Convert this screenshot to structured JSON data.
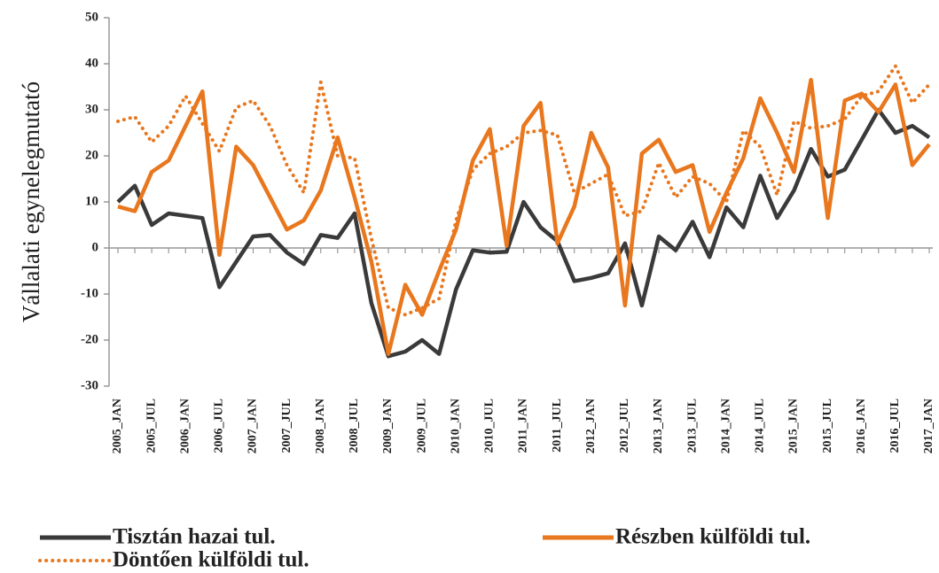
{
  "chart_data": {
    "type": "line",
    "y_label": "Vállalati egynelegmutató",
    "categories": [
      "2005_JAN",
      null,
      "2005_JUL",
      null,
      "2006_JAN",
      null,
      "2006_JUL",
      null,
      "2007_JAN",
      null,
      "2007_JUL",
      null,
      "2008_JAN",
      null,
      "2008_JUL",
      null,
      "2009_JAN",
      null,
      "2009_JUL",
      null,
      "2010_JAN",
      null,
      "2010_JUL",
      null,
      "2011_JAN",
      null,
      "2011_JUL",
      null,
      "2012_JAN",
      null,
      "2012_JUL",
      null,
      "2013_JAN",
      null,
      "2013_JUL",
      null,
      "2014_JAN",
      null,
      "2014_JUL",
      null,
      "2015_JAN",
      null,
      "2015_JUL",
      null,
      "2016_JAN",
      null,
      "2016_JUL",
      null,
      "2017_JAN"
    ],
    "series": [
      {
        "name": "Tisztán hazai tul.",
        "color": "#3a3a3a",
        "style": "solid",
        "values": [
          10,
          13.5,
          5,
          7.5,
          7,
          6.5,
          -8.5,
          -3,
          2.5,
          2.8,
          -1,
          -3.5,
          2.8,
          2.2,
          7.5,
          -12,
          -23.5,
          -22.5,
          -20,
          -23,
          -9,
          -0.5,
          -1,
          -0.8,
          10,
          4.5,
          1.5,
          -7.2,
          -6.5,
          -5.5,
          1,
          -12.5,
          2.5,
          -0.5,
          5.7,
          -2,
          8.8,
          4.5,
          15.7,
          6.5,
          12.5,
          21.5,
          15.5,
          17,
          23.5,
          30,
          25,
          26.5,
          24
        ]
      },
      {
        "name": "Részben külföldi tul.",
        "color": "#e8771e",
        "style": "solid",
        "values": [
          9,
          8,
          16.5,
          19,
          26.5,
          34,
          -1.5,
          22,
          18,
          11,
          4,
          6,
          12.5,
          24,
          11,
          -3,
          -23,
          -8,
          -14.5,
          -5,
          4,
          19,
          25.8,
          0.5,
          26.5,
          31.5,
          1,
          9,
          25,
          17.5,
          -12.5,
          20.5,
          23.5,
          16.5,
          18,
          3.5,
          12,
          19.5,
          32.5,
          25,
          16.5,
          36.5,
          6.5,
          32,
          33.5,
          29.5,
          35.5,
          18,
          22.5
        ]
      },
      {
        "name": "Döntően külföldi tul.",
        "color": "#e8771e",
        "style": "dotted",
        "values": [
          27.5,
          28.5,
          23,
          26.5,
          33,
          27,
          21,
          30.5,
          32,
          26.5,
          18,
          12,
          36,
          20,
          19.5,
          2,
          -13,
          -14.5,
          -13,
          -11,
          6,
          17,
          20.5,
          22,
          25,
          25.5,
          24.5,
          12,
          14,
          16,
          7,
          8,
          18.5,
          11,
          15.5,
          14,
          10,
          25.5,
          22,
          11.5,
          27.5,
          26,
          26.5,
          28,
          33,
          34,
          39.5,
          31.5,
          35.5
        ]
      }
    ],
    "ylim": [
      -30,
      50
    ],
    "yticks": [
      -30,
      -20,
      -10,
      0,
      10,
      20,
      30,
      40,
      50
    ],
    "legend": "bottom",
    "grid": false
  }
}
